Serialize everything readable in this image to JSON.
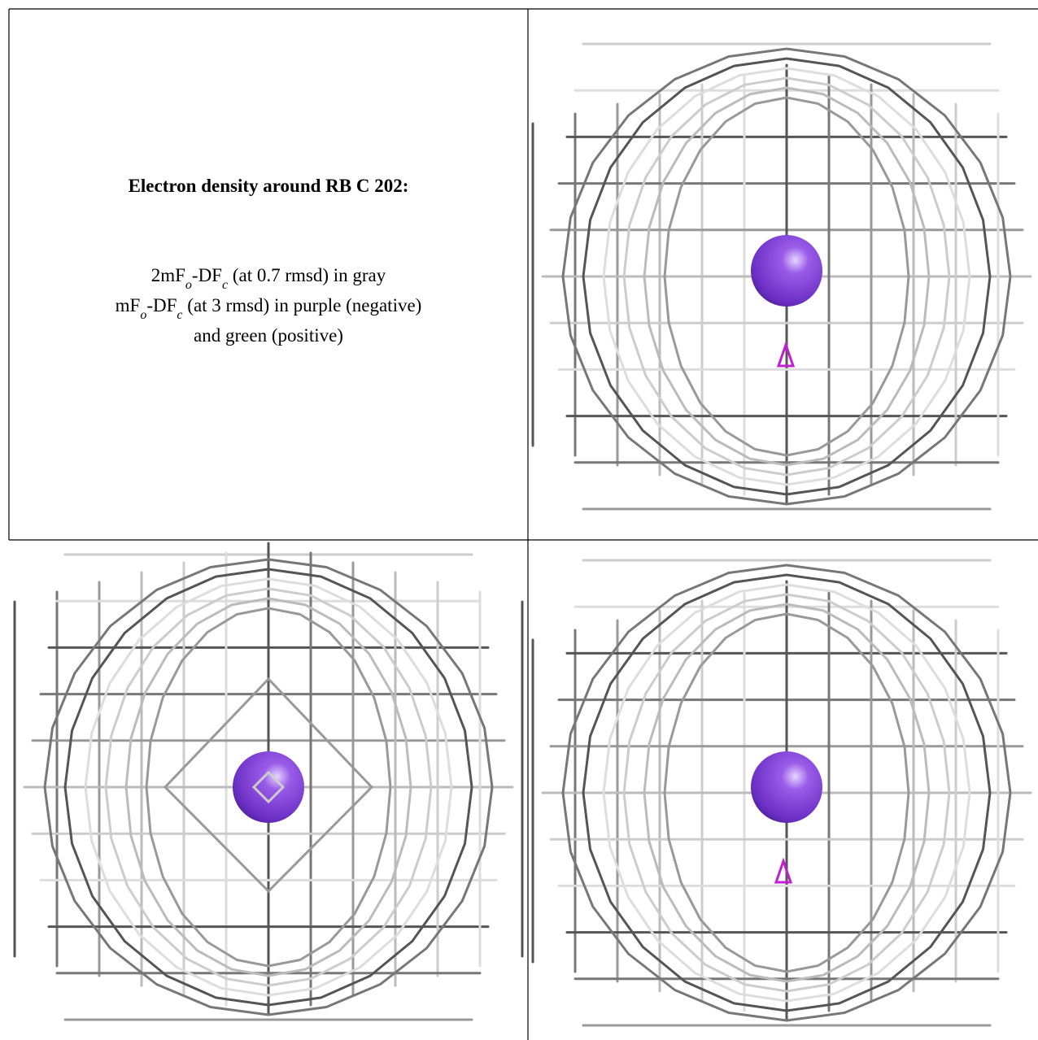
{
  "figure": {
    "title": "Electron density around RB C 202:",
    "legend_lines": [
      [
        "2mF",
        "o",
        "-DF",
        "c",
        " (at 0.7 rmsd) in gray"
      ],
      [
        "mF",
        "o",
        "-DF",
        "c",
        " (at 3 rmsd) in purple (negative)"
      ],
      [
        "and green (positive)"
      ]
    ]
  }
}
